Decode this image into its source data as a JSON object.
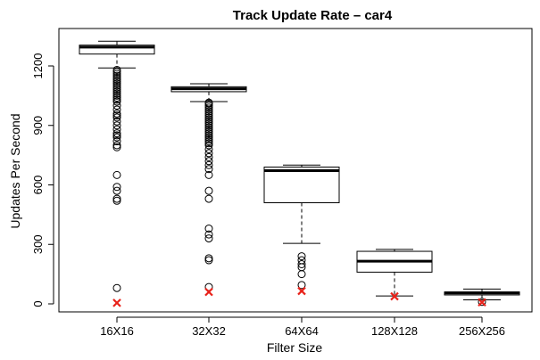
{
  "chart_data": {
    "type": "boxplot",
    "title": "Track Update Rate – car4",
    "xlabel": "Filter Size",
    "ylabel": "Updates Per Second",
    "ylim": [
      0,
      1350
    ],
    "yticks": [
      0,
      300,
      600,
      900,
      1200
    ],
    "grid": false,
    "categories": [
      "16X16",
      "32X32",
      "64X64",
      "128X128",
      "256X256"
    ],
    "boxes": [
      {
        "category": "16X16",
        "whisker_low": 1190,
        "q1": 1260,
        "median": 1295,
        "q3": 1305,
        "whisker_high": 1325,
        "outliers": [
          1180,
          1170,
          1160,
          1150,
          1140,
          1130,
          1120,
          1110,
          1100,
          1090,
          1080,
          1070,
          1060,
          1050,
          1040,
          1030,
          1020,
          1000,
          980,
          960,
          950,
          940,
          920,
          900,
          880,
          860,
          850,
          840,
          820,
          800,
          790,
          650,
          590,
          570,
          530,
          520,
          80
        ],
        "marker": 5
      },
      {
        "category": "32X32",
        "whisker_low": 1020,
        "q1": 1070,
        "median": 1085,
        "q3": 1095,
        "whisker_high": 1110,
        "outliers": [
          1015,
          1010,
          1000,
          990,
          980,
          970,
          960,
          950,
          940,
          930,
          920,
          910,
          900,
          890,
          880,
          870,
          860,
          850,
          840,
          830,
          820,
          810,
          800,
          780,
          760,
          740,
          720,
          700,
          680,
          650,
          570,
          530,
          380,
          350,
          330,
          230,
          220,
          85
        ],
        "marker": 60
      },
      {
        "category": "64X64",
        "whisker_low": 305,
        "q1": 510,
        "median": 672,
        "q3": 690,
        "whisker_high": 700,
        "outliers": [
          240,
          220,
          200,
          185,
          150,
          95
        ],
        "marker": 65
      },
      {
        "category": "128X128",
        "whisker_low": 40,
        "q1": 160,
        "median": 215,
        "q3": 265,
        "whisker_high": 275,
        "outliers": [],
        "marker": 38
      },
      {
        "category": "256X256",
        "whisker_low": 20,
        "q1": 45,
        "median": 55,
        "q3": 60,
        "whisker_high": 75,
        "outliers": [
          10
        ],
        "marker": 8
      }
    ],
    "colors": {
      "box": "#000000",
      "marker": "#e8221a"
    }
  }
}
